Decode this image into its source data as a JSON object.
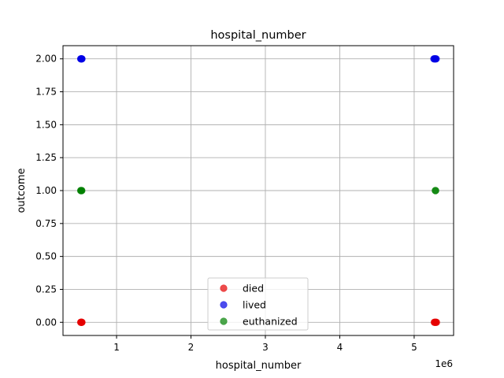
{
  "chart_data": {
    "type": "scatter",
    "title": "hospital_number",
    "xlabel": "hospital_number",
    "ylabel": "outcome",
    "x_offset_label": "1e6",
    "xlim": [
      280000,
      5530000
    ],
    "ylim": [
      -0.1,
      2.1
    ],
    "x_ticks": [
      {
        "value": 1000000,
        "label": "1"
      },
      {
        "value": 2000000,
        "label": "2"
      },
      {
        "value": 3000000,
        "label": "3"
      },
      {
        "value": 4000000,
        "label": "4"
      },
      {
        "value": 5000000,
        "label": "5"
      }
    ],
    "y_ticks": [
      {
        "value": 0.0,
        "label": "0.00"
      },
      {
        "value": 0.25,
        "label": "0.25"
      },
      {
        "value": 0.5,
        "label": "0.50"
      },
      {
        "value": 0.75,
        "label": "0.75"
      },
      {
        "value": 1.0,
        "label": "1.00"
      },
      {
        "value": 1.25,
        "label": "1.25"
      },
      {
        "value": 1.5,
        "label": "1.50"
      },
      {
        "value": 1.75,
        "label": "1.75"
      },
      {
        "value": 2.0,
        "label": "2.00"
      }
    ],
    "grid": true,
    "legend_position": "lower center",
    "series": [
      {
        "name": "died",
        "color": "#e60000",
        "points": [
          [
            518000,
            0
          ],
          [
            522000,
            0
          ],
          [
            527000,
            0
          ],
          [
            531000,
            0
          ],
          [
            535000,
            0
          ],
          [
            5270000,
            0
          ],
          [
            5278000,
            0
          ],
          [
            5285000,
            0
          ],
          [
            5292000,
            0
          ],
          [
            5300000,
            0
          ]
        ]
      },
      {
        "name": "lived",
        "color": "#0000e6",
        "points": [
          [
            518000,
            2
          ],
          [
            522000,
            2
          ],
          [
            527000,
            2
          ],
          [
            531000,
            2
          ],
          [
            535000,
            2
          ],
          [
            5265000,
            2
          ],
          [
            5272000,
            2
          ],
          [
            5280000,
            2
          ],
          [
            5288000,
            2
          ],
          [
            5296000,
            2
          ]
        ]
      },
      {
        "name": "euthanized",
        "color": "#008000",
        "points": [
          [
            518000,
            1
          ],
          [
            523000,
            1
          ],
          [
            528000,
            1
          ],
          [
            533000,
            1
          ],
          [
            5284000,
            1
          ],
          [
            5289000,
            1
          ]
        ]
      }
    ]
  }
}
